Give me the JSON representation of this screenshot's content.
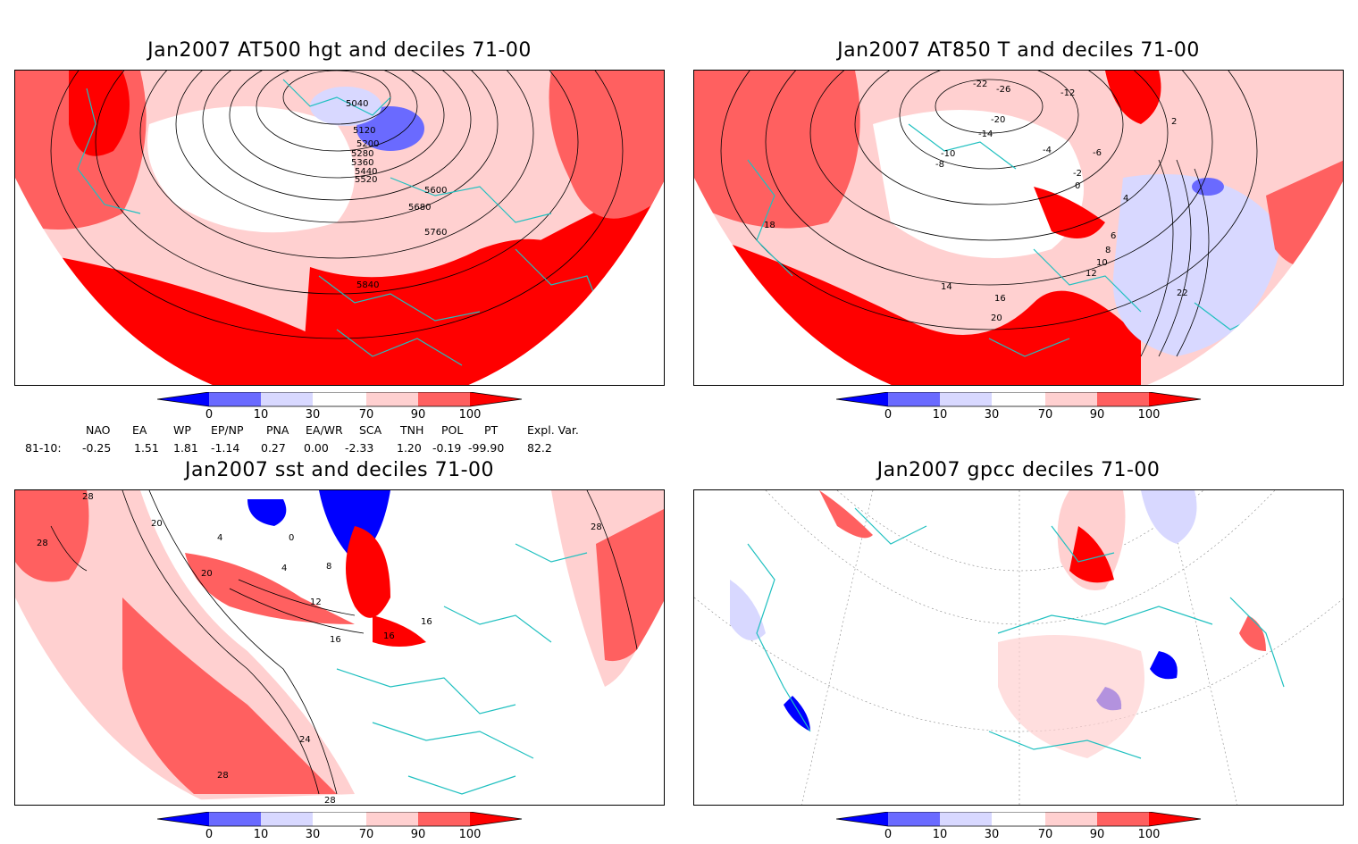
{
  "panels": [
    {
      "title": "Jan2007 AT500 hgt and deciles 71-00",
      "contour_labels": [
        "5040",
        "5120",
        "5200",
        "5280",
        "5360",
        "5440",
        "5520",
        "5600",
        "5680",
        "5760",
        "5840"
      ]
    },
    {
      "title": "Jan2007 AT850 T and deciles 71-00",
      "contour_labels": [
        "-26",
        "-22",
        "-20",
        "-14",
        "-12",
        "-10",
        "-8",
        "-6",
        "-4",
        "-2",
        "0",
        "2",
        "4",
        "6",
        "8",
        "10",
        "12",
        "14",
        "16",
        "18",
        "20",
        "22"
      ]
    },
    {
      "title": "Jan2007 sst and deciles 71-00",
      "contour_labels": [
        "28",
        "28",
        "20",
        "20",
        "4",
        "0",
        "4",
        "8",
        "12",
        "16",
        "16",
        "16",
        "24",
        "28",
        "28",
        "28"
      ]
    },
    {
      "title": "Jan2007 gpcc deciles 71-00",
      "contour_labels": []
    }
  ],
  "colorbar": {
    "tick_labels": [
      "0",
      "10",
      "30",
      "70",
      "90",
      "100"
    ],
    "colors": [
      "#0000ff",
      "#6a6aff",
      "#d8d8ff",
      "#ffffff",
      "#ffd0d0",
      "#ff6060",
      "#ff0000"
    ]
  },
  "teleconnections": {
    "headers": [
      "NAO",
      "EA",
      "WP",
      "EP/NP",
      "PNA",
      "EA/WR",
      "SCA",
      "TNH",
      "POL",
      "PT",
      "Expl. Var."
    ],
    "row_label": "81-10:",
    "values": [
      "-0.25",
      "1.51",
      "1.81",
      "-1.14",
      "0.27",
      "0.00",
      "-2.33",
      "1.20",
      "-0.19",
      "-99.90",
      "82.2"
    ]
  }
}
